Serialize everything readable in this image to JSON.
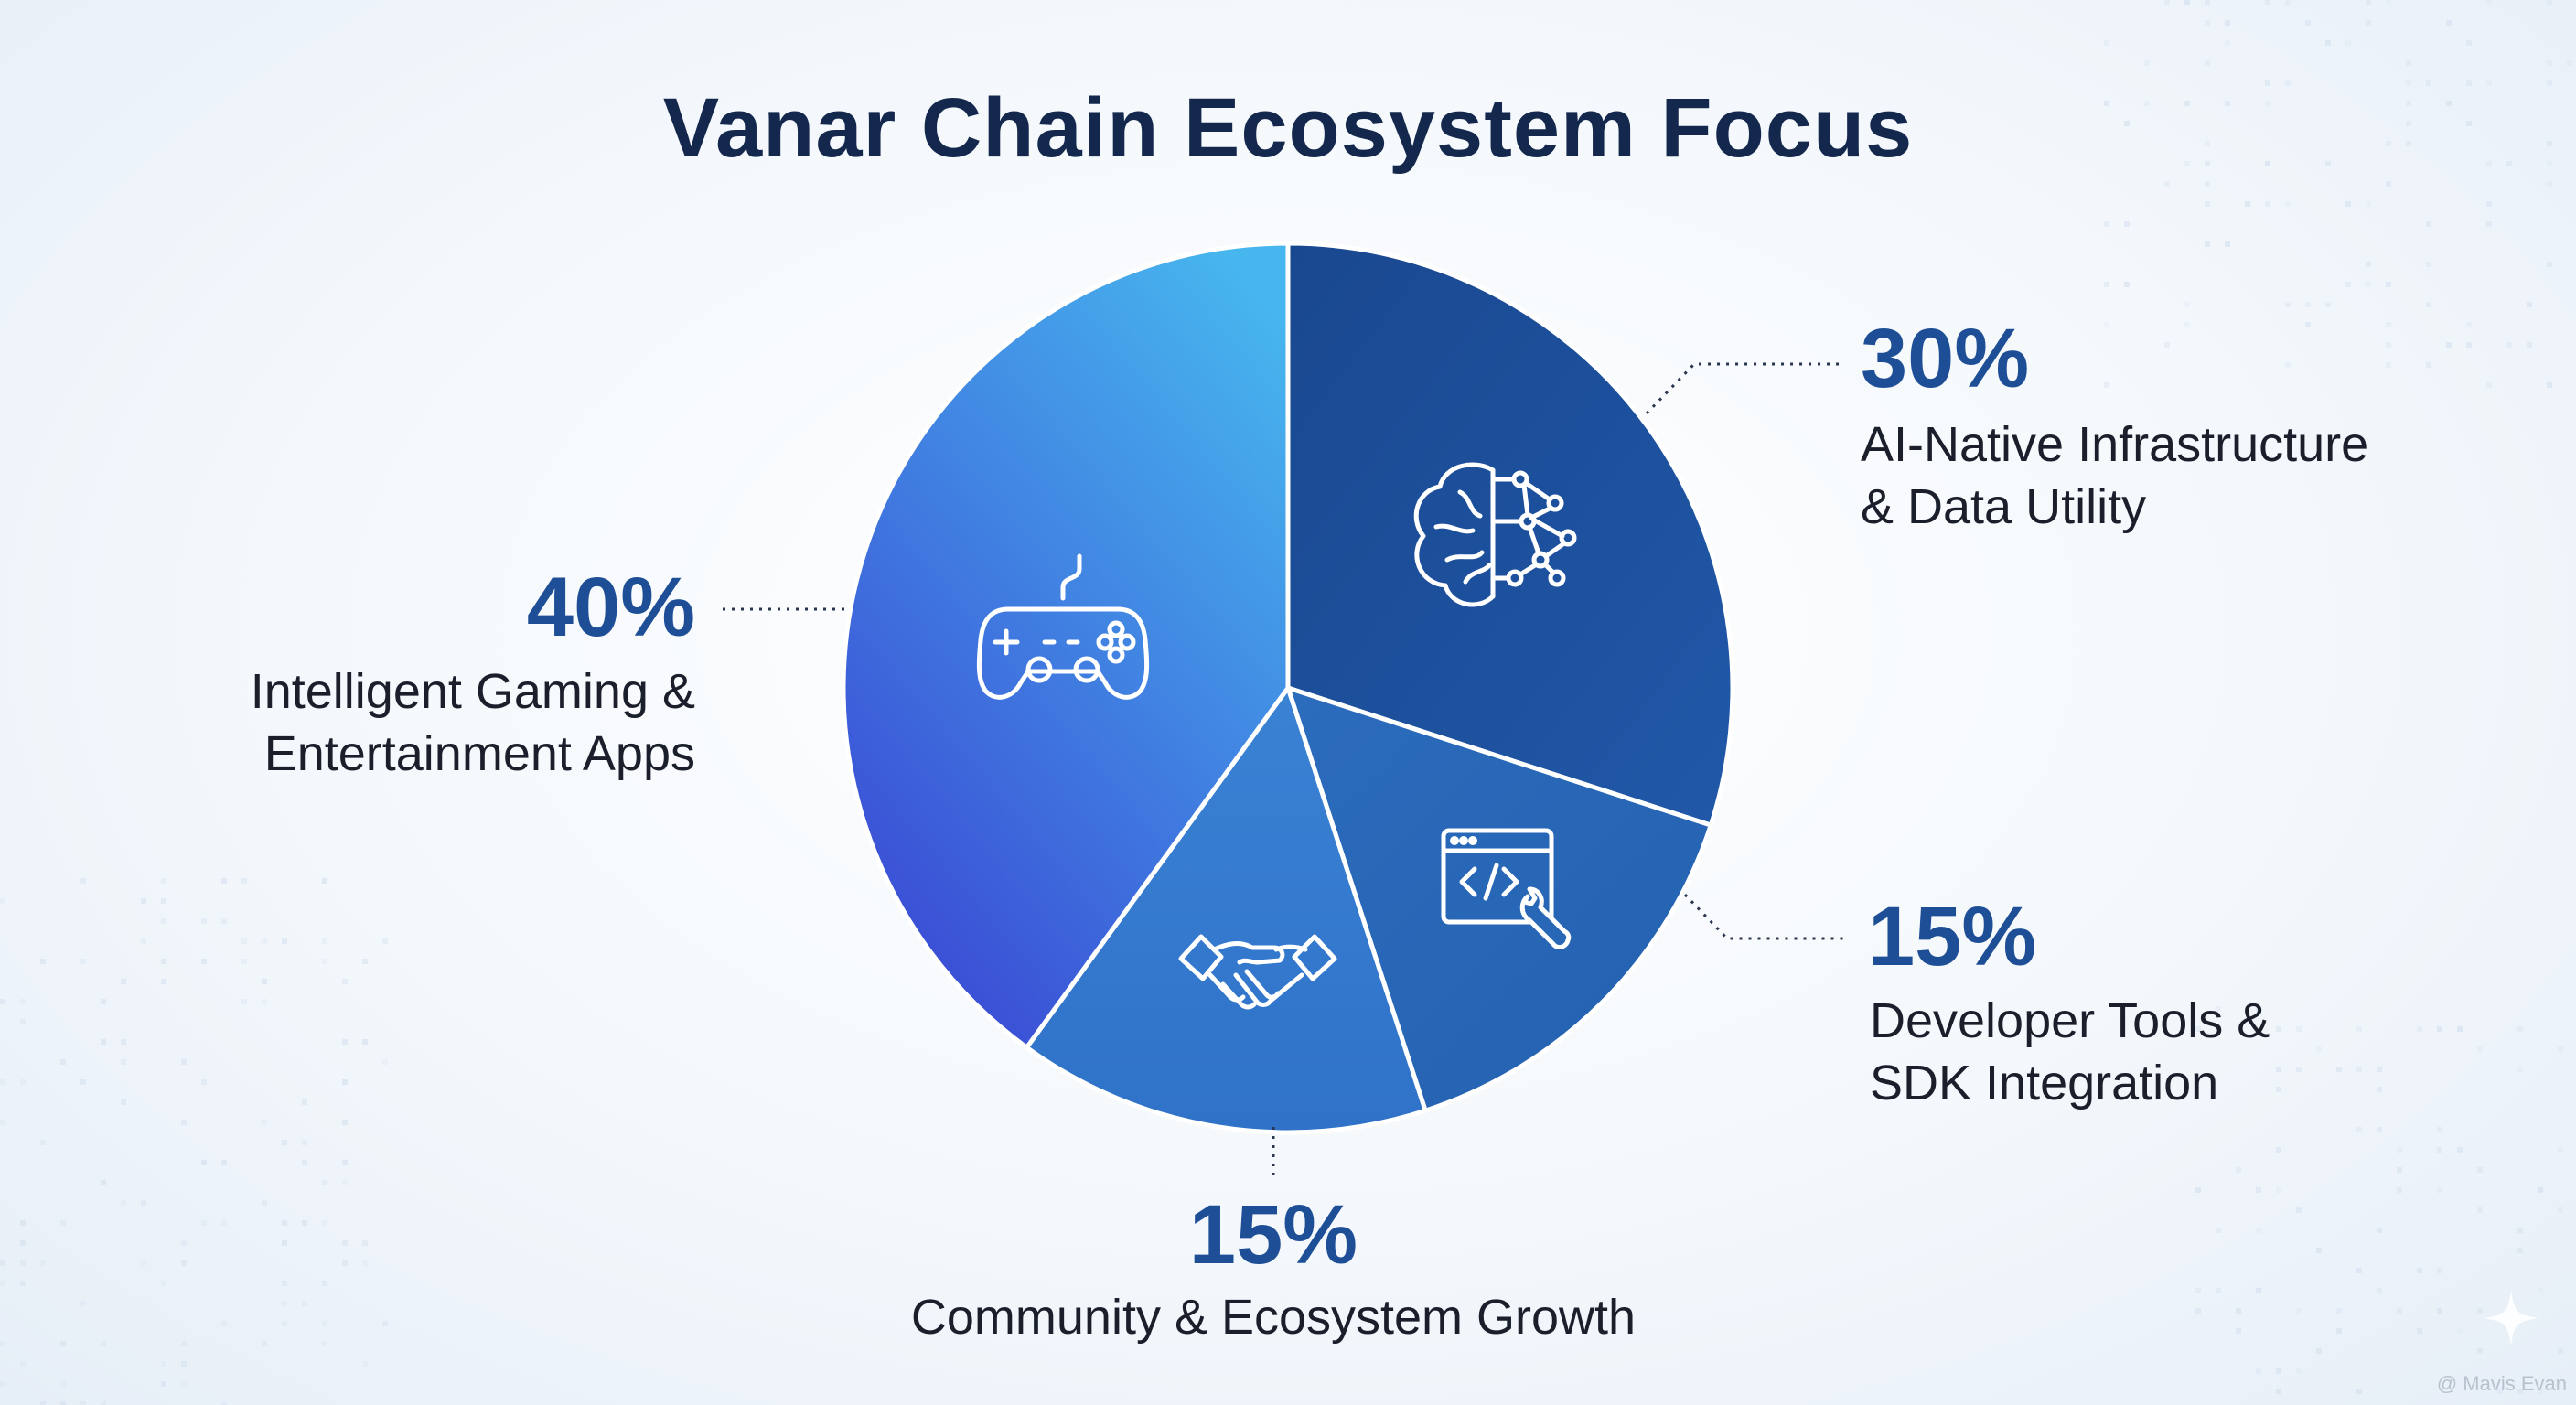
{
  "title": "Vanar Chain Ecosystem Focus",
  "watermark": "@ Mavis Evan",
  "colors": {
    "title": "#14284d",
    "percent": "#1e4f96",
    "label": "#1a1f2b",
    "slice_ai": "#1c4e98",
    "slice_dev": "#2968b8",
    "slice_community": "#3378cc",
    "slice_gaming_light": "#46b3ec",
    "slice_gaming_dark": "#3a4fd6"
  },
  "chart_data": {
    "type": "pie",
    "title": "Vanar Chain Ecosystem Focus",
    "slices": [
      {
        "label": "AI-Native Infrastructure & Data Utility",
        "value": 30,
        "display": "30%",
        "icon": "brain-network-icon"
      },
      {
        "label": "Developer Tools & SDK Integration",
        "value": 15,
        "display": "15%",
        "icon": "code-window-wrench-icon"
      },
      {
        "label": "Community & Ecosystem Growth",
        "value": 15,
        "display": "15%",
        "icon": "handshake-icon"
      },
      {
        "label": "Intelligent Gaming & Entertainment Apps",
        "value": 40,
        "display": "40%",
        "icon": "game-controller-icon"
      }
    ]
  },
  "labels": {
    "ai": {
      "pct": "30%",
      "line1": "AI-Native Infrastructure",
      "line2": "& Data Utility"
    },
    "dev": {
      "pct": "15%",
      "line1": "Developer Tools &",
      "line2": "SDK Integration"
    },
    "community": {
      "pct": "15%",
      "line1": "Community & Ecosystem Growth"
    },
    "gaming": {
      "pct": "40%",
      "line1": "Intelligent Gaming &",
      "line2": "Entertainment Apps"
    }
  }
}
